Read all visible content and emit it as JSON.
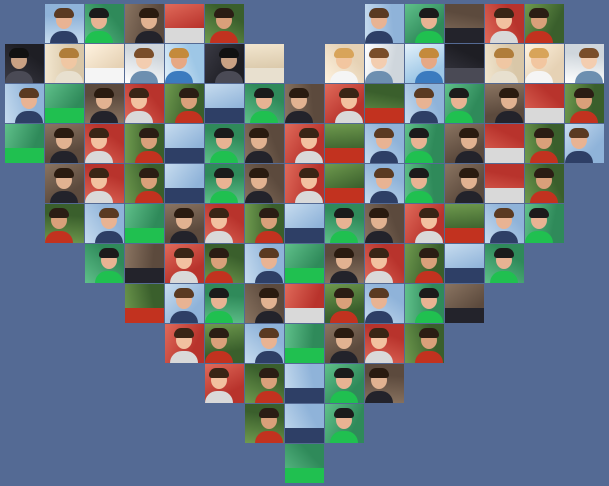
{
  "background_color": "#546a94",
  "palettes": [
    {
      "bg": "#8fb3d9",
      "sky": "#c7dcef",
      "face": "#e8b393",
      "hair": "#5a3a22",
      "body": "#2e3f66"
    },
    {
      "bg": "#d9c7a8",
      "sky": "#f2e6cf",
      "face": "#f0c7a3",
      "hair": "#b07d3a",
      "body": "#e8e0cf"
    },
    {
      "bg": "#3a5f2c",
      "sky": "#6f9a4e",
      "face": "#d9a07a",
      "hair": "#2b1d14",
      "body": "#c2321f"
    },
    {
      "bg": "#1e1e24",
      "sky": "#3a3a44",
      "face": "#c9a184",
      "hair": "#111111",
      "body": "#4a4a55"
    },
    {
      "bg": "#b8332c",
      "sky": "#e06a5a",
      "face": "#f2c1a0",
      "hair": "#3a2516",
      "body": "#d9d9d9"
    },
    {
      "bg": "#9ec7e6",
      "sky": "#e3f1fa",
      "face": "#e6a884",
      "hair": "#c48a3c",
      "body": "#3b7bbf"
    },
    {
      "bg": "#5c4a3d",
      "sky": "#8a7461",
      "face": "#e1b291",
      "hair": "#2a1b10",
      "body": "#23232b"
    },
    {
      "bg": "#cfd6dc",
      "sky": "#ffffff",
      "face": "#f3cdb0",
      "hair": "#7a4e2a",
      "body": "#6d8fb0"
    },
    {
      "bg": "#2f8a5a",
      "sky": "#5fc08a",
      "face": "#e8b393",
      "hair": "#1b1b1b",
      "body": "#20c050"
    },
    {
      "bg": "#e6d2b5",
      "sky": "#fff3e0",
      "face": "#f2c6a0",
      "hair": "#d8a45a",
      "body": "#f5f5f5"
    }
  ],
  "rows": [
    {
      "y": 4,
      "cols": [
        45,
        85,
        125,
        165,
        205,
        365,
        405,
        445,
        485,
        525
      ]
    },
    {
      "y": 44,
      "cols": [
        5,
        45,
        85,
        125,
        165,
        205,
        245,
        325,
        365,
        405,
        445,
        485,
        525,
        565
      ]
    },
    {
      "y": 84,
      "cols": [
        5,
        45,
        85,
        125,
        165,
        205,
        245,
        285,
        325,
        365,
        405,
        445,
        485,
        525,
        565
      ]
    },
    {
      "y": 124,
      "cols": [
        5,
        45,
        85,
        125,
        165,
        205,
        245,
        285,
        325,
        365,
        405,
        445,
        485,
        525,
        565
      ]
    },
    {
      "y": 164,
      "cols": [
        45,
        85,
        125,
        165,
        205,
        245,
        285,
        325,
        365,
        405,
        445,
        485,
        525
      ]
    },
    {
      "y": 204,
      "cols": [
        45,
        85,
        125,
        165,
        205,
        245,
        285,
        325,
        365,
        405,
        445,
        485,
        525
      ]
    },
    {
      "y": 244,
      "cols": [
        85,
        125,
        165,
        205,
        245,
        285,
        325,
        365,
        405,
        445,
        485
      ]
    },
    {
      "y": 284,
      "cols": [
        125,
        165,
        205,
        245,
        285,
        325,
        365,
        405,
        445
      ]
    },
    {
      "y": 324,
      "cols": [
        165,
        205,
        245,
        285,
        325,
        365,
        405
      ]
    },
    {
      "y": 364,
      "cols": [
        205,
        245,
        285,
        325,
        365
      ]
    },
    {
      "y": 404,
      "cols": [
        245,
        285,
        325
      ]
    },
    {
      "y": 444,
      "cols": [
        285
      ]
    }
  ]
}
